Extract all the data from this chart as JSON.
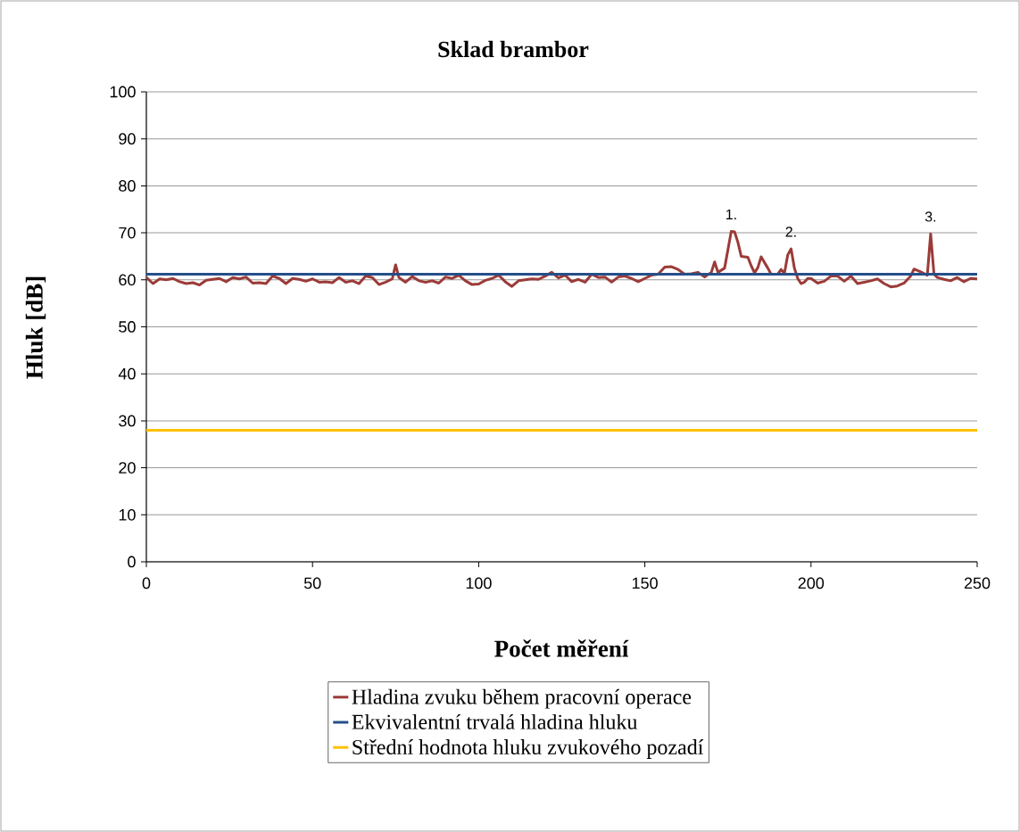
{
  "chart_data": {
    "type": "line",
    "title": "Sklad brambor",
    "xlabel": "Počet měření",
    "ylabel": "Hluk [dB]",
    "xlim": [
      0,
      250
    ],
    "ylim": [
      0,
      100
    ],
    "xticks": [
      0,
      50,
      100,
      150,
      200,
      250
    ],
    "yticks": [
      0,
      10,
      20,
      30,
      40,
      50,
      60,
      70,
      80,
      90,
      100
    ],
    "grid": "y",
    "legend": "bottom",
    "marker": "none",
    "line_style": "solid",
    "annotations": [
      {
        "text": "1.",
        "x": 176,
        "y": 70.3
      },
      {
        "text": "2.",
        "x": 194,
        "y": 66.6
      },
      {
        "text": "3.",
        "x": 236,
        "y": 69.8
      }
    ],
    "series": [
      {
        "name": "Hladina zvuku během pracovní operace",
        "color": "#9b3b38",
        "x": [
          0,
          2,
          4,
          6,
          8,
          10,
          12,
          14,
          16,
          18,
          20,
          22,
          24,
          26,
          28,
          30,
          32,
          34,
          36,
          38,
          40,
          42,
          44,
          46,
          48,
          50,
          52,
          54,
          56,
          58,
          60,
          62,
          64,
          66,
          68,
          70,
          72,
          74,
          75,
          76,
          78,
          80,
          82,
          84,
          86,
          88,
          90,
          92,
          94,
          96,
          98,
          100,
          102,
          104,
          106,
          108,
          110,
          112,
          114,
          116,
          118,
          120,
          122,
          124,
          126,
          128,
          130,
          132,
          134,
          136,
          138,
          140,
          142,
          144,
          146,
          148,
          150,
          152,
          154,
          156,
          158,
          160,
          162,
          164,
          166,
          168,
          170,
          171,
          172,
          174,
          176,
          177,
          178,
          179,
          181,
          182,
          183,
          184,
          185,
          187,
          188,
          190,
          191,
          192,
          193,
          194,
          195,
          196,
          197,
          198,
          199,
          200,
          202,
          204,
          206,
          208,
          210,
          212,
          214,
          216,
          218,
          220,
          222,
          224,
          226,
          228,
          230,
          231,
          233,
          235,
          236,
          237,
          238,
          240,
          242,
          244,
          246,
          248,
          250
        ],
        "values": [
          60.5,
          59.2,
          60.2,
          60,
          60.3,
          59.6,
          59.2,
          59.4,
          58.9,
          59.9,
          60.1,
          60.3,
          59.6,
          60.5,
          60.2,
          60.6,
          59.3,
          59.4,
          59.2,
          60.8,
          60.3,
          59.2,
          60.3,
          60.1,
          59.7,
          60.2,
          59.5,
          59.6,
          59.4,
          60.5,
          59.5,
          59.8,
          59.2,
          60.8,
          60.5,
          59,
          59.5,
          60.2,
          63.2,
          60.5,
          59.5,
          60.7,
          59.8,
          59.5,
          59.8,
          59.3,
          60.6,
          60.3,
          61,
          59.8,
          59,
          59.1,
          59.9,
          60.3,
          61,
          59.6,
          58.6,
          59.8,
          60,
          60.2,
          60.1,
          60.8,
          61.6,
          60.4,
          61,
          59.6,
          60.1,
          59.5,
          61.2,
          60.5,
          60.6,
          59.5,
          60.6,
          60.8,
          60.3,
          59.6,
          60.3,
          61,
          61.2,
          62.7,
          62.8,
          62.2,
          61.2,
          61.3,
          61.6,
          60.6,
          61.6,
          63.8,
          61.6,
          62.5,
          70.3,
          70.2,
          68,
          65,
          64.8,
          63,
          61.5,
          62.6,
          64.9,
          62.5,
          61.2,
          61.2,
          62.2,
          61.4,
          65.3,
          66.6,
          62.5,
          60.3,
          59.2,
          59.5,
          60.3,
          60.3,
          59.3,
          59.7,
          60.8,
          60.8,
          59.7,
          60.8,
          59.2,
          59.5,
          59.8,
          60.2,
          59.2,
          58.5,
          58.7,
          59.3,
          60.8,
          62.3,
          61.7,
          61,
          69.8,
          61.2,
          60.5,
          60.1,
          59.8,
          60.5,
          59.6,
          60.3,
          60.2
        ]
      },
      {
        "name": "Ekvivalentní trvalá hladina hluku",
        "color": "#254f8a",
        "x": [
          0,
          250
        ],
        "values": [
          61.2,
          61.2
        ]
      },
      {
        "name": "Střední hodnota hluku zvukového pozadí",
        "color": "#ffc000",
        "x": [
          0,
          250
        ],
        "values": [
          28,
          28
        ]
      }
    ]
  }
}
